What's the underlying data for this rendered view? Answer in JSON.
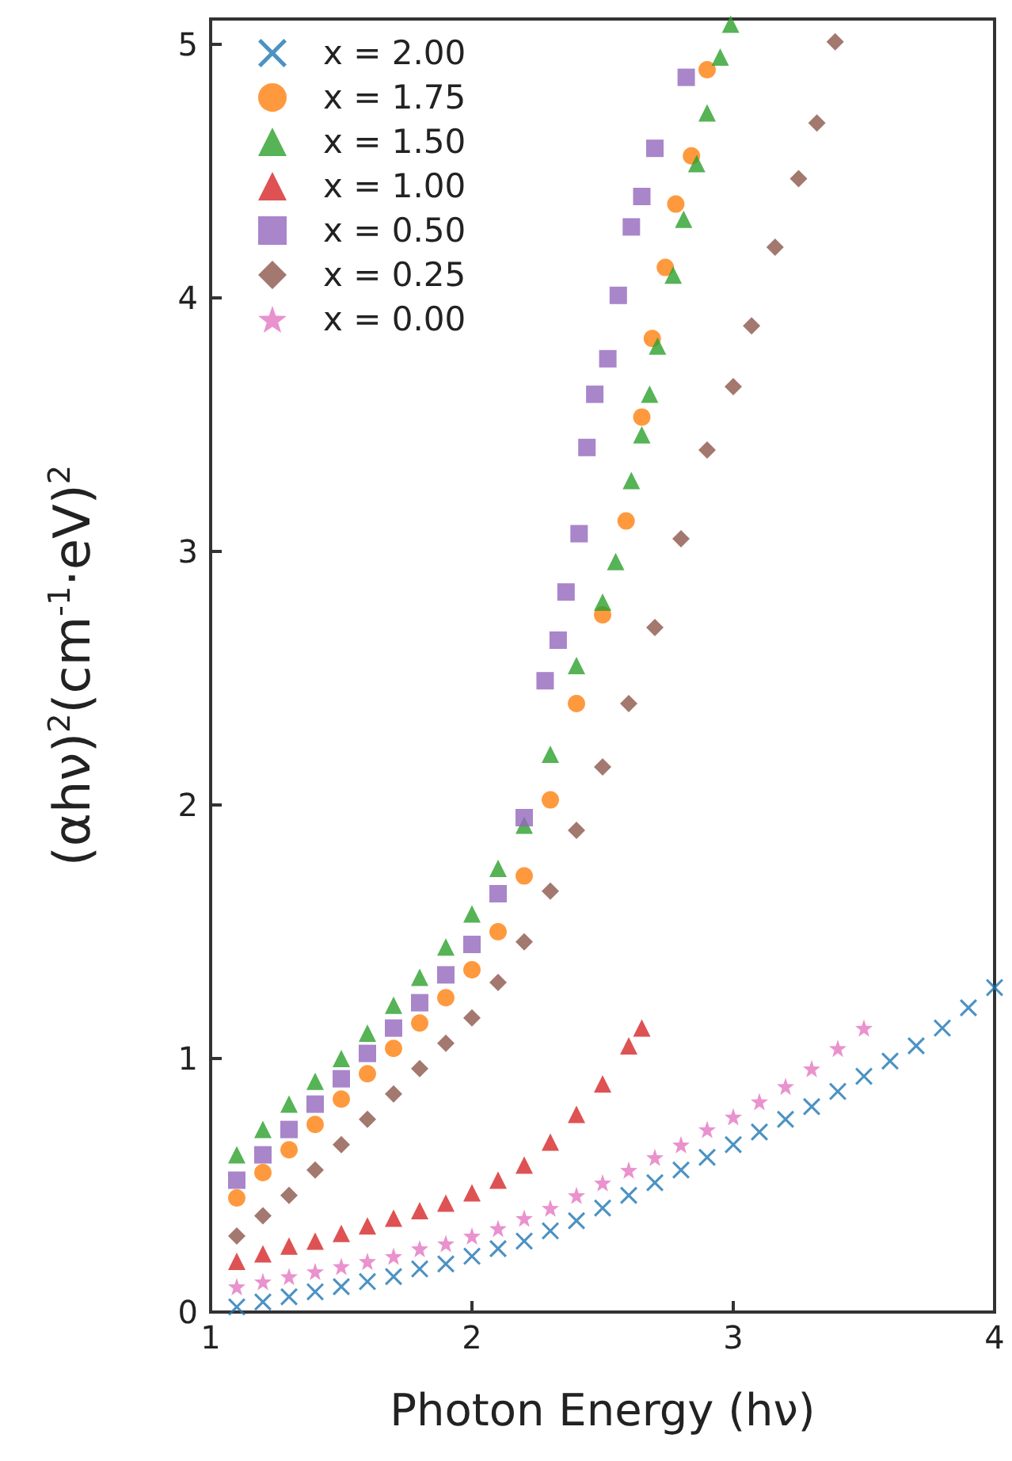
{
  "chart_data": {
    "type": "scatter",
    "xlabel": "Photon Energy (hν)",
    "ylabel": "(αhν)$^{2}$(cm$^{-1}$·eV)$^{2}$",
    "xlim": [
      1,
      4
    ],
    "xticks": [
      1,
      2,
      3,
      4
    ],
    "ylim": [
      0,
      5.1
    ],
    "yticks": [
      0,
      1,
      2,
      3,
      4,
      5
    ],
    "grid": false,
    "legend": "top left",
    "series": [
      {
        "name": "x = 2.00",
        "color": "#1f77b4",
        "marker": "cross",
        "x": [
          1.1,
          1.2,
          1.3,
          1.4,
          1.5,
          1.6,
          1.7,
          1.8,
          1.9,
          2.0,
          2.1,
          2.2,
          2.3,
          2.4,
          2.5,
          2.6,
          2.7,
          2.8,
          2.9,
          3.0,
          3.1,
          3.2,
          3.3,
          3.4,
          3.5,
          3.6,
          3.7,
          3.8,
          3.9,
          4.0
        ],
        "values": [
          0.02,
          0.04,
          0.06,
          0.08,
          0.1,
          0.12,
          0.14,
          0.17,
          0.19,
          0.22,
          0.25,
          0.28,
          0.32,
          0.36,
          0.41,
          0.46,
          0.51,
          0.56,
          0.61,
          0.66,
          0.71,
          0.76,
          0.81,
          0.87,
          0.93,
          0.99,
          1.05,
          1.12,
          1.2,
          1.28
        ]
      },
      {
        "name": "x = 1.75",
        "color": "#ff7f0e",
        "marker": "circle",
        "x": [
          1.1,
          1.2,
          1.3,
          1.4,
          1.5,
          1.6,
          1.7,
          1.8,
          1.9,
          2.0,
          2.1,
          2.2,
          2.3,
          2.4,
          2.5,
          2.59,
          2.65,
          2.69,
          2.74,
          2.78,
          2.84,
          2.9
        ],
        "values": [
          0.45,
          0.55,
          0.64,
          0.74,
          0.84,
          0.94,
          1.04,
          1.14,
          1.24,
          1.35,
          1.5,
          1.72,
          2.02,
          2.4,
          2.75,
          3.12,
          3.53,
          3.84,
          4.12,
          4.37,
          4.56,
          4.9
        ]
      },
      {
        "name": "x = 1.50",
        "color": "#2ca02c",
        "marker": "triangle",
        "x": [
          1.1,
          1.2,
          1.3,
          1.4,
          1.5,
          1.6,
          1.7,
          1.8,
          1.9,
          2.0,
          2.1,
          2.2,
          2.3,
          2.4,
          2.5,
          2.55,
          2.61,
          2.65,
          2.68,
          2.71,
          2.77,
          2.81,
          2.86,
          2.9,
          2.95,
          2.99
        ],
        "values": [
          0.62,
          0.72,
          0.82,
          0.91,
          1.0,
          1.1,
          1.21,
          1.32,
          1.44,
          1.57,
          1.75,
          1.92,
          2.2,
          2.55,
          2.8,
          2.96,
          3.28,
          3.46,
          3.62,
          3.81,
          4.09,
          4.31,
          4.53,
          4.73,
          4.95,
          5.08
        ]
      },
      {
        "name": "x = 1.00",
        "color": "#d62728",
        "marker": "triangle",
        "x": [
          1.1,
          1.2,
          1.3,
          1.4,
          1.5,
          1.6,
          1.7,
          1.8,
          1.9,
          2.0,
          2.1,
          2.2,
          2.3,
          2.4,
          2.5,
          2.6,
          2.65
        ],
        "values": [
          0.2,
          0.23,
          0.26,
          0.28,
          0.31,
          0.34,
          0.37,
          0.4,
          0.43,
          0.47,
          0.52,
          0.58,
          0.67,
          0.78,
          0.9,
          1.05,
          1.12
        ]
      },
      {
        "name": "x = 0.50",
        "color": "#9467bd",
        "marker": "square",
        "x": [
          1.1,
          1.2,
          1.3,
          1.4,
          1.5,
          1.6,
          1.7,
          1.8,
          1.9,
          2.0,
          2.1,
          2.2,
          2.28,
          2.33,
          2.36,
          2.41,
          2.44,
          2.47,
          2.52,
          2.56,
          2.61,
          2.65,
          2.7,
          2.82
        ],
        "values": [
          0.52,
          0.62,
          0.72,
          0.82,
          0.92,
          1.02,
          1.12,
          1.22,
          1.33,
          1.45,
          1.65,
          1.95,
          2.49,
          2.65,
          2.84,
          3.07,
          3.41,
          3.62,
          3.76,
          4.01,
          4.28,
          4.4,
          4.59,
          4.87
        ]
      },
      {
        "name": "x = 0.25",
        "color": "#8c564b",
        "marker": "diamond",
        "x": [
          1.1,
          1.2,
          1.3,
          1.4,
          1.5,
          1.6,
          1.7,
          1.8,
          1.9,
          2.0,
          2.1,
          2.2,
          2.3,
          2.4,
          2.5,
          2.6,
          2.7,
          2.8,
          2.9,
          3.0,
          3.07,
          3.16,
          3.25,
          3.32,
          3.39
        ],
        "values": [
          0.3,
          0.38,
          0.46,
          0.56,
          0.66,
          0.76,
          0.86,
          0.96,
          1.06,
          1.16,
          1.3,
          1.46,
          1.66,
          1.9,
          2.15,
          2.4,
          2.7,
          3.05,
          3.4,
          3.65,
          3.89,
          4.2,
          4.47,
          4.69,
          5.01
        ]
      },
      {
        "name": "x = 0.00",
        "color": "#e377c2",
        "marker": "star",
        "x": [
          1.1,
          1.2,
          1.3,
          1.4,
          1.5,
          1.6,
          1.7,
          1.8,
          1.9,
          2.0,
          2.1,
          2.2,
          2.3,
          2.4,
          2.5,
          2.6,
          2.7,
          2.8,
          2.9,
          3.0,
          3.1,
          3.2,
          3.3,
          3.4,
          3.5
        ],
        "values": [
          0.1,
          0.12,
          0.14,
          0.16,
          0.18,
          0.2,
          0.22,
          0.25,
          0.27,
          0.3,
          0.33,
          0.37,
          0.41,
          0.46,
          0.51,
          0.56,
          0.61,
          0.66,
          0.72,
          0.77,
          0.83,
          0.89,
          0.96,
          1.04,
          1.12
        ]
      }
    ]
  }
}
